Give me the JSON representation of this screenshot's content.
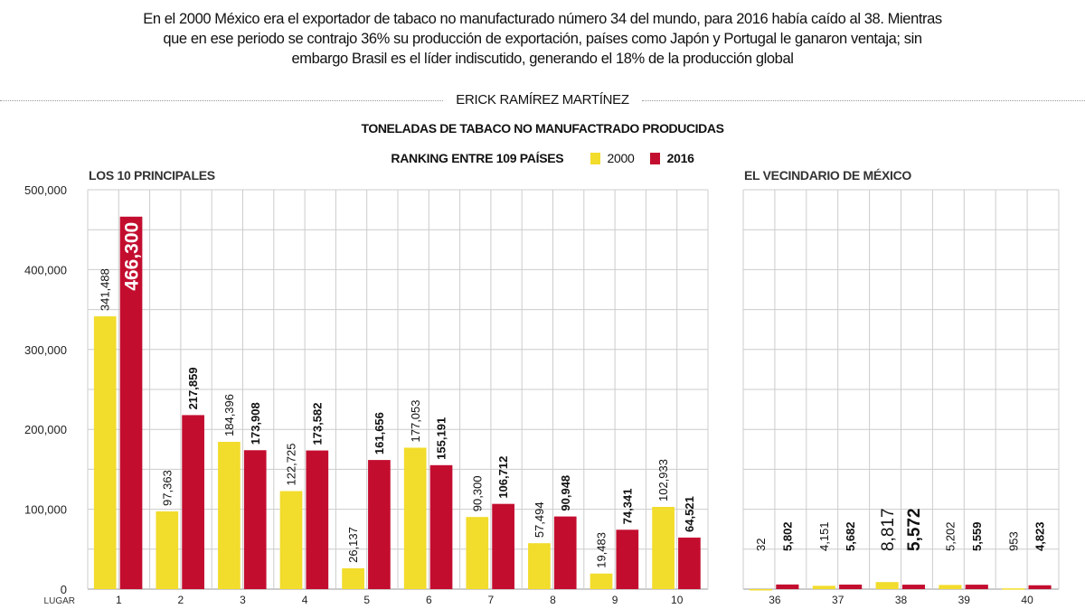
{
  "intro": "En el 2000 México era el exportador de tabaco no manufacturado número 34 del mundo, para 2016 había caído al 38. Mientras que en ese periodo se contrajo 36% su producción de exportación, países como Japón y Portugal le ganaron ventaja; sin embargo Brasil es el líder indiscutido, generando el 18% de la producción global",
  "byline": "ERICK RAMÍREZ MARTÍNEZ",
  "colors": {
    "2000": "#f2dc2c",
    "2016": "#c30d2f"
  },
  "chart_data": [
    {
      "type": "bar",
      "title": "TONELADAS DE TABACO NO MANUFACTRADO PRODUCIDAS",
      "subtitle": "RANKING ENTRE 109 PAÍSES",
      "panel_title": "LOS 10 PRINCIPALES",
      "xlabel": "LUGAR",
      "categories": [
        "1",
        "2",
        "3",
        "4",
        "5",
        "6",
        "7",
        "8",
        "9",
        "10"
      ],
      "series": [
        {
          "name": "2000",
          "values": [
            341488,
            97363,
            184396,
            122725,
            26137,
            177053,
            90300,
            57494,
            19483,
            102933
          ],
          "labels": [
            "341,488",
            "97,363",
            "184,396",
            "122,725",
            "26,137",
            "177,053",
            "90,300",
            "57,494",
            "19,483",
            "102,933"
          ]
        },
        {
          "name": "2016",
          "values": [
            466300,
            217859,
            173908,
            173582,
            161656,
            155191,
            106712,
            90948,
            74341,
            64521
          ],
          "labels": [
            "466,300",
            "217,859",
            "173,908",
            "173,582",
            "161,656",
            "155,191",
            "106,712",
            "90,948",
            "74,341",
            "64,521"
          ]
        }
      ],
      "yticks": [
        "0",
        "100,000",
        "200,000",
        "300,000",
        "400,000",
        "500,000"
      ],
      "ylim": [
        0,
        500000
      ],
      "grid": true,
      "legend": "top-center"
    },
    {
      "type": "bar",
      "panel_title": "EL VECINDARIO DE MÉXICO",
      "categories": [
        "36",
        "37",
        "38",
        "39",
        "40"
      ],
      "series": [
        {
          "name": "2000",
          "values": [
            32,
            4151,
            8817,
            5202,
            953
          ],
          "labels": [
            "32",
            "4,151",
            "8,817",
            "5,202",
            "953"
          ]
        },
        {
          "name": "2016",
          "values": [
            5802,
            5682,
            5572,
            5559,
            4823
          ],
          "labels": [
            "5,802",
            "5,682",
            "5,572",
            "5,559",
            "4,823"
          ]
        }
      ],
      "ylim": [
        0,
        500000
      ],
      "grid": true
    }
  ]
}
